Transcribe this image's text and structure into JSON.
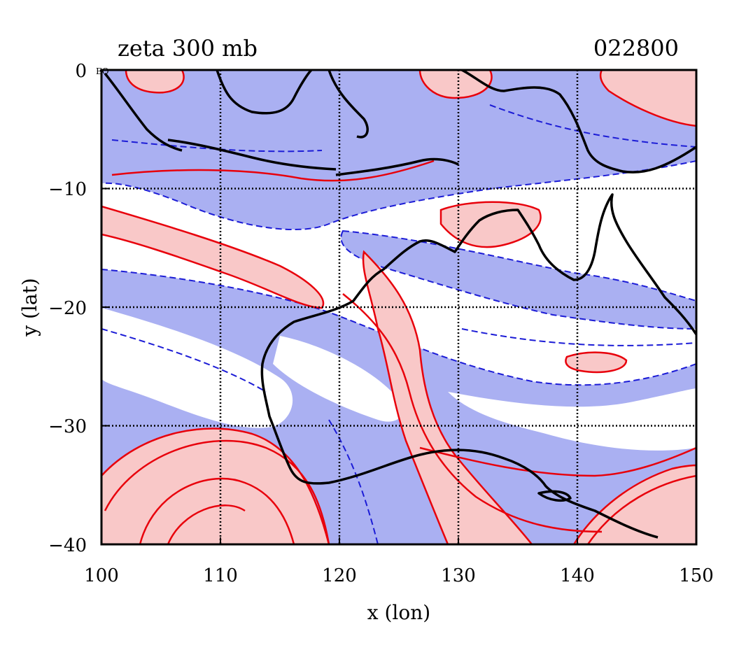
{
  "figure": {
    "title_left": "zeta 300 mb",
    "title_right": "022800",
    "corner_label": "EQ",
    "xlabel": "x (lon)",
    "ylabel": "y (lat)"
  },
  "chart_data": {
    "type": "heatmap",
    "title": "zeta 300 mb",
    "timestamp": "022800",
    "xlabel": "x (lon)",
    "ylabel": "y (lat)",
    "xlim": [
      100,
      150
    ],
    "ylim": [
      -40,
      0
    ],
    "x_ticks": [
      100,
      110,
      120,
      130,
      140,
      150
    ],
    "x_tick_labels": [
      "100",
      "110",
      "120",
      "130",
      "140",
      "150"
    ],
    "y_ticks": [
      0,
      -10,
      -20,
      -30,
      -40
    ],
    "y_tick_labels": [
      "0",
      "−10",
      "−20",
      "−30",
      "−40"
    ],
    "grid": true,
    "colors": {
      "positive_fill": "#f9c8c8",
      "positive_contour": "#e8000b",
      "negative_fill": "#aab0f2",
      "negative_contour": "#1c1cd6",
      "coastline": "#000000",
      "grid": "#000000"
    }
  }
}
